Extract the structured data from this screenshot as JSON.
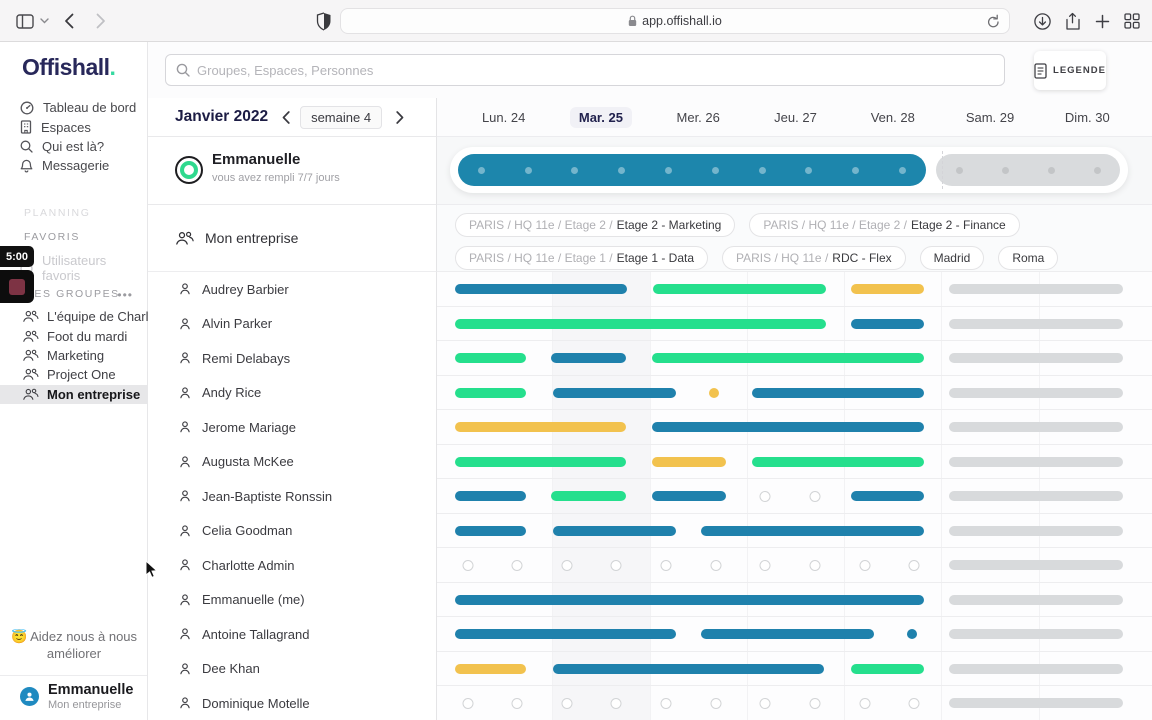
{
  "browser": {
    "url": "app.offishall.io"
  },
  "sidebar": {
    "logo_text": "Offishall",
    "logo_dot": ".",
    "nav": [
      {
        "icon": "dashboard",
        "label": "Tableau de bord"
      },
      {
        "icon": "building",
        "label": "Espaces"
      },
      {
        "icon": "search",
        "label": "Qui est là?"
      },
      {
        "icon": "bell",
        "label": "Messagerie"
      }
    ],
    "section_planning": "PLANNING",
    "section_favoris": "FAVORIS",
    "favoris_item": "Utilisateurs favoris",
    "section_groups": "MES GROUPES",
    "groups": [
      "L'équipe de Charl...",
      "Foot du mardi",
      "Marketing",
      "Project One",
      "Mon entreprise"
    ],
    "selected_group": "Mon entreprise",
    "help_emoji": "😇",
    "help_text": "Aidez nous à nous améliorer",
    "user": {
      "name": "Emmanuelle",
      "org": "Mon entreprise"
    },
    "recorder_time": "5:00"
  },
  "topbar": {
    "search_placeholder": "Groupes, Espaces, Personnes",
    "legend_label": "LEGENDE"
  },
  "planner": {
    "month": "Janvier 2022",
    "week": "semaine 4",
    "days": [
      "Lun. 24",
      "Mar. 25",
      "Mer. 26",
      "Jeu. 27",
      "Ven. 28",
      "Sam. 29",
      "Dim. 30"
    ],
    "selected_day_index": 1,
    "me": {
      "name": "Emmanuelle",
      "subtitle": "vous avez rempli 7/7 jours",
      "filled_dots": 10,
      "rest_dots": 4
    },
    "chips": [
      {
        "prefix": "PARIS / HQ 11e / Etage 2 /",
        "name": "Etage 2 - Marketing"
      },
      {
        "prefix": "PARIS / HQ 11e / Etage 2 /",
        "name": "Etage 2 - Finance"
      },
      {
        "prefix": "PARIS / HQ 11e / Etage 1 /",
        "name": "Etage 1 - Data"
      },
      {
        "prefix": "PARIS / HQ 11e /",
        "name": "RDC - Flex"
      },
      {
        "prefix": "",
        "name": "Madrid"
      },
      {
        "prefix": "",
        "name": "Roma"
      }
    ],
    "group_label": "Mon entreprise",
    "colors": {
      "teal": "#1f81ac",
      "green": "#25df8d",
      "yellow": "#f2c24e",
      "gray": "#d8dadc",
      "progress": "#1d86ac"
    },
    "rows": [
      {
        "name": "Audrey Barbier",
        "items": [
          {
            "t": "bar",
            "s": 0.0,
            "e": 1.77,
            "c": "teal"
          },
          {
            "t": "bar",
            "s": 2.04,
            "e": 3.81,
            "c": "green"
          },
          {
            "t": "bar",
            "s": 4.07,
            "e": 4.82,
            "c": "yellow"
          },
          {
            "t": "bar",
            "s": 5.08,
            "e": 6.87,
            "c": "gray"
          }
        ]
      },
      {
        "name": "Alvin Parker",
        "items": [
          {
            "t": "bar",
            "s": 0.0,
            "e": 3.81,
            "c": "green"
          },
          {
            "t": "bar",
            "s": 4.07,
            "e": 4.82,
            "c": "teal"
          },
          {
            "t": "bar",
            "s": 5.08,
            "e": 6.87,
            "c": "gray"
          }
        ]
      },
      {
        "name": "Remi Delabays",
        "items": [
          {
            "t": "bar",
            "s": 0.0,
            "e": 0.73,
            "c": "green"
          },
          {
            "t": "bar",
            "s": 0.99,
            "e": 1.76,
            "c": "teal"
          },
          {
            "t": "bar",
            "s": 2.03,
            "e": 4.82,
            "c": "green"
          },
          {
            "t": "bar",
            "s": 5.08,
            "e": 6.87,
            "c": "gray"
          }
        ]
      },
      {
        "name": "Andy Rice",
        "items": [
          {
            "t": "bar",
            "s": 0.0,
            "e": 0.73,
            "c": "green"
          },
          {
            "t": "bar",
            "s": 1.01,
            "e": 2.27,
            "c": "teal"
          },
          {
            "t": "dot",
            "x": 2.66,
            "c": "yellow"
          },
          {
            "t": "bar",
            "s": 3.05,
            "e": 4.82,
            "c": "teal"
          },
          {
            "t": "bar",
            "s": 5.08,
            "e": 6.87,
            "c": "gray"
          }
        ]
      },
      {
        "name": "Jerome Mariage",
        "items": [
          {
            "t": "bar",
            "s": 0.0,
            "e": 1.76,
            "c": "yellow"
          },
          {
            "t": "bar",
            "s": 2.03,
            "e": 4.82,
            "c": "teal"
          },
          {
            "t": "bar",
            "s": 5.08,
            "e": 6.87,
            "c": "gray"
          }
        ]
      },
      {
        "name": "Augusta McKee",
        "items": [
          {
            "t": "bar",
            "s": 0.0,
            "e": 1.76,
            "c": "green"
          },
          {
            "t": "bar",
            "s": 2.03,
            "e": 2.79,
            "c": "yellow"
          },
          {
            "t": "bar",
            "s": 3.05,
            "e": 4.82,
            "c": "green"
          },
          {
            "t": "bar",
            "s": 5.08,
            "e": 6.87,
            "c": "gray"
          }
        ]
      },
      {
        "name": "Jean-Baptiste Ronssin",
        "items": [
          {
            "t": "bar",
            "s": 0.0,
            "e": 0.73,
            "c": "teal"
          },
          {
            "t": "bar",
            "s": 0.99,
            "e": 1.76,
            "c": "green"
          },
          {
            "t": "bar",
            "s": 2.03,
            "e": 2.79,
            "c": "teal"
          },
          {
            "t": "circle",
            "x": 3.19
          },
          {
            "t": "circle",
            "x": 3.7
          },
          {
            "t": "bar",
            "s": 4.07,
            "e": 4.82,
            "c": "teal"
          },
          {
            "t": "bar",
            "s": 5.08,
            "e": 6.87,
            "c": "gray"
          }
        ]
      },
      {
        "name": "Celia Goodman",
        "items": [
          {
            "t": "bar",
            "s": 0.0,
            "e": 0.73,
            "c": "teal"
          },
          {
            "t": "bar",
            "s": 1.01,
            "e": 2.27,
            "c": "teal"
          },
          {
            "t": "bar",
            "s": 2.53,
            "e": 4.82,
            "c": "teal"
          },
          {
            "t": "bar",
            "s": 5.08,
            "e": 6.87,
            "c": "gray"
          }
        ]
      },
      {
        "name": "Charlotte Admin",
        "items": [
          {
            "t": "circle",
            "x": 0.13
          },
          {
            "t": "circle",
            "x": 0.64
          },
          {
            "t": "circle",
            "x": 1.15
          },
          {
            "t": "circle",
            "x": 1.66
          },
          {
            "t": "circle",
            "x": 2.17
          },
          {
            "t": "circle",
            "x": 2.68
          },
          {
            "t": "circle",
            "x": 3.19
          },
          {
            "t": "circle",
            "x": 3.7
          },
          {
            "t": "circle",
            "x": 4.21
          },
          {
            "t": "circle",
            "x": 4.72
          },
          {
            "t": "bar",
            "s": 5.08,
            "e": 6.87,
            "c": "gray"
          }
        ]
      },
      {
        "name": "Emmanuelle (me)",
        "items": [
          {
            "t": "bar",
            "s": 0.0,
            "e": 4.82,
            "c": "teal"
          },
          {
            "t": "bar",
            "s": 5.08,
            "e": 6.87,
            "c": "gray"
          }
        ]
      },
      {
        "name": "Antoine Tallagrand",
        "items": [
          {
            "t": "bar",
            "s": 0.0,
            "e": 2.27,
            "c": "teal"
          },
          {
            "t": "bar",
            "s": 2.53,
            "e": 4.31,
            "c": "teal"
          },
          {
            "t": "dot",
            "x": 4.7,
            "c": "teal"
          },
          {
            "t": "bar",
            "s": 5.08,
            "e": 6.87,
            "c": "gray"
          }
        ]
      },
      {
        "name": "Dee Khan",
        "items": [
          {
            "t": "bar",
            "s": 0.0,
            "e": 0.73,
            "c": "yellow"
          },
          {
            "t": "bar",
            "s": 1.01,
            "e": 3.79,
            "c": "teal"
          },
          {
            "t": "bar",
            "s": 4.07,
            "e": 4.82,
            "c": "green"
          },
          {
            "t": "bar",
            "s": 5.08,
            "e": 6.87,
            "c": "gray"
          }
        ]
      },
      {
        "name": "Dominique Motelle",
        "items": [
          {
            "t": "circle",
            "x": 0.13
          },
          {
            "t": "circle",
            "x": 0.64
          },
          {
            "t": "circle",
            "x": 1.15
          },
          {
            "t": "circle",
            "x": 1.66
          },
          {
            "t": "circle",
            "x": 2.17
          },
          {
            "t": "circle",
            "x": 2.68
          },
          {
            "t": "circle",
            "x": 3.19
          },
          {
            "t": "circle",
            "x": 3.7
          },
          {
            "t": "circle",
            "x": 4.21
          },
          {
            "t": "circle",
            "x": 4.72
          },
          {
            "t": "bar",
            "s": 5.08,
            "e": 6.87,
            "c": "gray"
          }
        ]
      }
    ]
  }
}
